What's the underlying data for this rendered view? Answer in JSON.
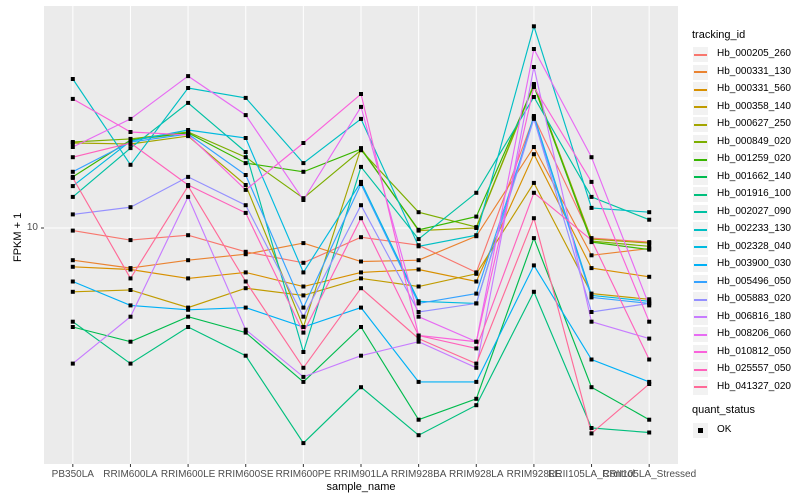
{
  "chart_data": {
    "type": "line",
    "title": "",
    "xlabel": "sample_name",
    "ylabel": "FPKM + 1",
    "y_scale": "log10",
    "y_ticks": [
      10
    ],
    "grid": "ggplot-gray",
    "panel_bg": "#EBEBEB",
    "grid_color": "#FFFFFF",
    "tick_color": "#333333",
    "tick_label_color": "#4d4d4d",
    "point_color": "#000000",
    "point_shape": "square",
    "legend": {
      "title": "tracking_id",
      "position": "right"
    },
    "quant_legend": {
      "title": "quant_status",
      "items": [
        {
          "label": "OK",
          "marker": "black-square"
        }
      ]
    },
    "categories": [
      "PB350LA",
      "RRIM600LA",
      "RRIM600LE",
      "RRIM600SE",
      "RRIM600PE",
      "RRIM901LA",
      "RRIM928BA",
      "RRIM928LA",
      "RRIM928LE",
      "RRII105LA_Control",
      "RRII105LA_Stressed"
    ],
    "series": [
      {
        "name": "Hb_000205_260",
        "color": "#F8766D",
        "values": [
          9.7,
          8.7,
          9.2,
          7.6,
          6.7,
          9.0,
          8.2,
          6.0,
          35.9,
          8.9,
          8.5
        ]
      },
      {
        "name": "Hb_000331_130",
        "color": "#EA8331",
        "values": [
          6.9,
          6.3,
          6.9,
          7.4,
          8.4,
          6.8,
          6.9,
          9.1,
          25.4,
          7.3,
          7.9
        ]
      },
      {
        "name": "Hb_000331_560",
        "color": "#D89000",
        "values": [
          6.4,
          6.2,
          5.6,
          6.0,
          5.1,
          6.0,
          6.2,
          5.4,
          23.4,
          6.3,
          5.7
        ]
      },
      {
        "name": "Hb_000358_140",
        "color": "#C09B00",
        "values": [
          4.8,
          4.9,
          4.0,
          5.0,
          4.6,
          5.6,
          5.1,
          5.9,
          16.8,
          4.7,
          4.4
        ]
      },
      {
        "name": "Hb_000627_250",
        "color": "#A3A500",
        "values": [
          26.6,
          26.3,
          28.8,
          16.4,
          3.2,
          25.1,
          9.7,
          10.0,
          51.9,
          8.8,
          8.4
        ]
      },
      {
        "name": "Hb_000849_020",
        "color": "#7CAE00",
        "values": [
          26.9,
          27.9,
          30.2,
          22.6,
          14.1,
          24.5,
          12.0,
          10.1,
          52.5,
          8.6,
          8.1
        ]
      },
      {
        "name": "Hb_001259_020",
        "color": "#39B600",
        "values": [
          18.0,
          27.5,
          29.9,
          21.1,
          19.1,
          24.8,
          9.8,
          11.4,
          51.3,
          8.5,
          7.8
        ]
      },
      {
        "name": "Hb_001662_140",
        "color": "#00BB4E",
        "values": [
          3.2,
          2.7,
          3.6,
          3.0,
          1.7,
          3.2,
          1.1,
          1.4,
          8.9,
          1.6,
          1.1
        ]
      },
      {
        "name": "Hb_001916_100",
        "color": "#00BF7D",
        "values": [
          3.4,
          2.1,
          3.2,
          2.3,
          0.84,
          1.6,
          0.92,
          1.3,
          4.8,
          1.0,
          0.95
        ]
      },
      {
        "name": "Hb_002027_090",
        "color": "#00C1A3",
        "values": [
          14.3,
          25.1,
          42.2,
          24.0,
          2.4,
          20.2,
          8.8,
          15.0,
          45.2,
          14.3,
          11.0
        ]
      },
      {
        "name": "Hb_002233_130",
        "color": "#00BFC4",
        "values": [
          55.6,
          20.7,
          50.1,
          44.7,
          21.1,
          35.1,
          8.1,
          9.2,
          102,
          12.6,
          12.0
        ]
      },
      {
        "name": "Hb_002328_040",
        "color": "#00BAE0",
        "values": [
          16.2,
          27.2,
          30.9,
          28.2,
          6.0,
          17.0,
          4.3,
          4.2,
          36.3,
          4.6,
          4.3
        ]
      },
      {
        "name": "Hb_003900_030",
        "color": "#00B0F6",
        "values": [
          5.4,
          4.1,
          3.9,
          4.0,
          3.2,
          4.0,
          1.7,
          1.7,
          6.5,
          2.2,
          1.7
        ]
      },
      {
        "name": "Hb_005496_050",
        "color": "#35A2FF",
        "values": [
          19.1,
          26.9,
          29.5,
          18.4,
          4.0,
          16.6,
          4.2,
          4.7,
          35.5,
          4.5,
          4.2
        ]
      },
      {
        "name": "Hb_005883_020",
        "color": "#9590FF",
        "values": [
          11.7,
          12.7,
          18.0,
          13.0,
          3.6,
          13.0,
          3.8,
          4.2,
          35.1,
          3.8,
          4.2
        ]
      },
      {
        "name": "Hb_006816_180",
        "color": "#C77CFF",
        "values": [
          2.1,
          3.6,
          14.3,
          3.1,
          1.8,
          2.3,
          2.7,
          2.0,
          63.8,
          3.4,
          2.8
        ]
      },
      {
        "name": "Hb_008206_060",
        "color": "#E76BF3",
        "values": [
          25.4,
          35.1,
          57.5,
          36.7,
          13.8,
          40.3,
          3.6,
          2.7,
          78.5,
          22.6,
          4.1
        ]
      },
      {
        "name": "Hb_010812_050",
        "color": "#FA62DB",
        "values": [
          44.2,
          30.2,
          29.2,
          15.5,
          26.6,
          46.8,
          2.9,
          2.7,
          50.7,
          17.0,
          3.4
        ]
      },
      {
        "name": "Hb_025557_050",
        "color": "#FF62BC",
        "values": [
          22.6,
          26.6,
          16.4,
          11.9,
          3.0,
          11.2,
          2.9,
          2.5,
          15.0,
          8.7,
          2.2
        ]
      },
      {
        "name": "Hb_041327_020",
        "color": "#FF6A98",
        "values": [
          17.8,
          5.6,
          16.2,
          5.4,
          2.0,
          5.0,
          2.8,
          2.1,
          11.2,
          0.94,
          1.66
        ]
      }
    ]
  }
}
